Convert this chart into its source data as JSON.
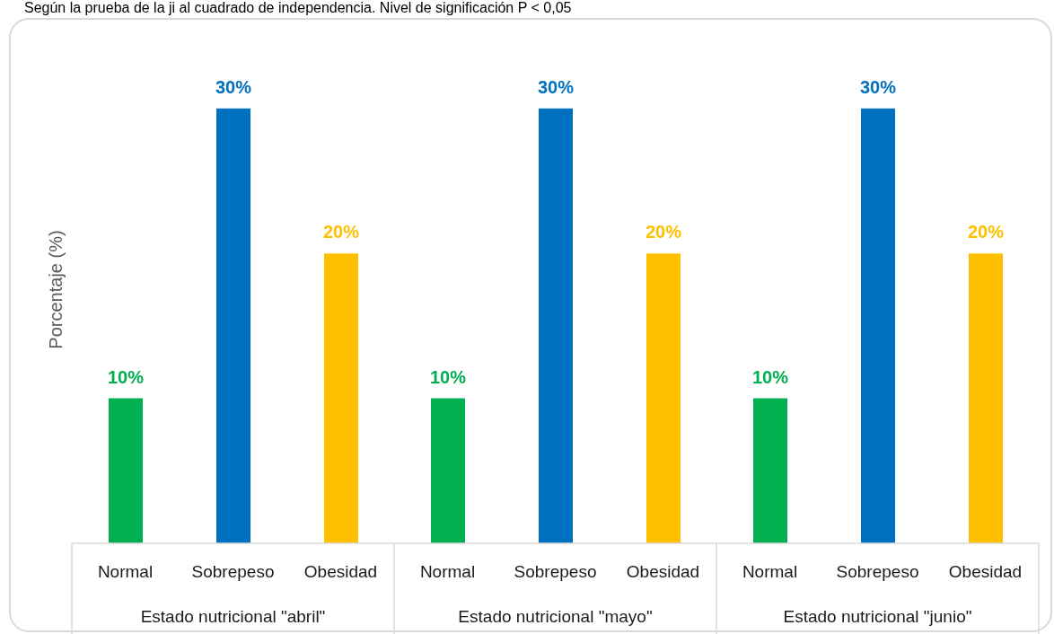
{
  "chart_data": {
    "type": "bar",
    "annotations": [
      "Según la prueba de la ji al cuadrado de independencia. Nivel de significación P < 0,05"
    ],
    "ylabel": "Porcentaje (%)",
    "categories": [
      "Estado nutricional \"abril\"",
      "Estado nutricional \"mayo\"",
      "Estado nutricional \"junio\""
    ],
    "series": [
      {
        "name": "Normal",
        "color": "#00b050",
        "values": [
          10,
          10,
          10
        ],
        "value_labels": [
          "10%",
          "10%",
          "10%"
        ]
      },
      {
        "name": "Sobrepeso",
        "color": "#0070c0",
        "values": [
          30,
          30,
          30
        ],
        "value_labels": [
          "30%",
          "30%",
          "30%"
        ]
      },
      {
        "name": "Obesidad",
        "color": "#ffc000",
        "values": [
          20,
          20,
          20
        ],
        "value_labels": [
          "20%",
          "20%",
          "20%"
        ]
      }
    ]
  }
}
